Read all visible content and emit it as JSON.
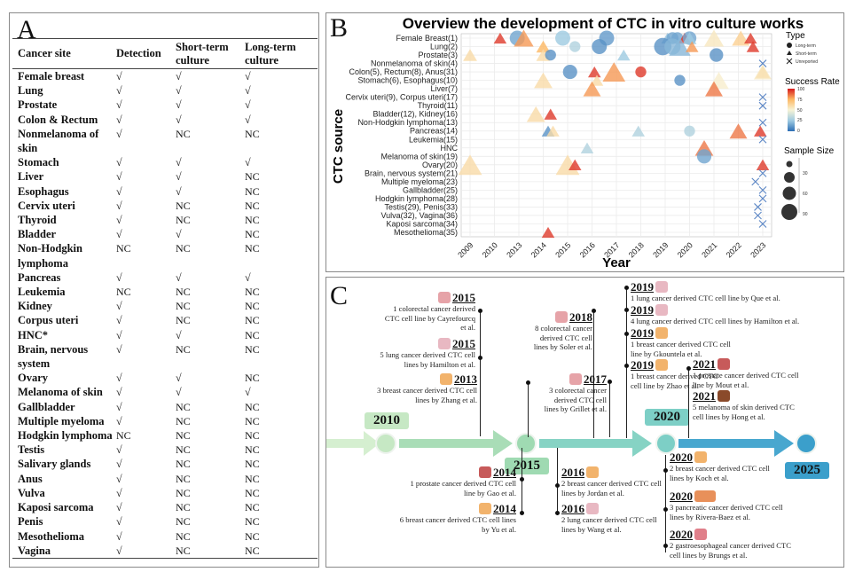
{
  "panelA": {
    "letter": "A",
    "headers": [
      "Cancer site",
      "Detection",
      "Short-term culture",
      "Long-term culture"
    ],
    "rows": [
      [
        "Female breast",
        "√",
        "√",
        "√"
      ],
      [
        "Lung",
        "√",
        "√",
        "√"
      ],
      [
        "Prostate",
        "√",
        "√",
        "√"
      ],
      [
        "Colon & Rectum",
        "√",
        "√",
        "√"
      ],
      [
        "Nonmelanoma of skin",
        "√",
        "NC",
        "NC"
      ],
      [
        "Stomach",
        "√",
        "√",
        "√"
      ],
      [
        "Liver",
        "√",
        "√",
        "NC"
      ],
      [
        "Esophagus",
        "√",
        "√",
        "NC"
      ],
      [
        "Cervix uteri",
        "√",
        "NC",
        "NC"
      ],
      [
        "Thyroid",
        "√",
        "NC",
        "NC"
      ],
      [
        "Bladder",
        "√",
        "√",
        "NC"
      ],
      [
        "Non-Hodgkin lymphoma",
        "NC",
        "NC",
        "NC"
      ],
      [
        "Pancreas",
        "√",
        "√",
        "√"
      ],
      [
        "Leukemia",
        "NC",
        "NC",
        "NC"
      ],
      [
        "Kidney",
        "√",
        "NC",
        "NC"
      ],
      [
        "Corpus uteri",
        "√",
        "NC",
        "NC"
      ],
      [
        "HNC*",
        "√",
        "√",
        "NC"
      ],
      [
        "Brain, nervous system",
        "√",
        "NC",
        "NC"
      ],
      [
        "Ovary",
        "√",
        "√",
        "NC"
      ],
      [
        "Melanoma of skin",
        "√",
        "√",
        "√"
      ],
      [
        "Gallbladder",
        "√",
        "NC",
        "NC"
      ],
      [
        "Multiple myeloma",
        "√",
        "NC",
        "NC"
      ],
      [
        "Hodgkin lymphoma",
        "NC",
        "NC",
        "NC"
      ],
      [
        "Testis",
        "√",
        "NC",
        "NC"
      ],
      [
        "Salivary glands",
        "√",
        "NC",
        "NC"
      ],
      [
        "Anus",
        "√",
        "NC",
        "NC"
      ],
      [
        "Vulva",
        "√",
        "NC",
        "NC"
      ],
      [
        "Kaposi sarcoma",
        "√",
        "NC",
        "NC"
      ],
      [
        "Penis",
        "√",
        "NC",
        "NC"
      ],
      [
        "Mesothelioma",
        "√",
        "NC",
        "NC"
      ],
      [
        "Vagina",
        "√",
        "NC",
        "NC"
      ]
    ]
  },
  "panelB": {
    "letter": "B"
  },
  "chart_data": {
    "type": "scatter",
    "title": "Overview the development of CTC in vitro culture works",
    "xlabel": "Year",
    "ylabel": "CTC source",
    "grid": true,
    "categories_x": [
      "2009",
      "2010",
      "2013",
      "2014",
      "2015",
      "2016",
      "2017",
      "2018",
      "2019",
      "2020",
      "2021",
      "2022",
      "2023"
    ],
    "categories_y": [
      "Female Breast(1)",
      "Lung(2)",
      "Prostate(3)",
      "Nonmelanoma of skin(4)",
      "Colon(5), Rectum(8), Anus(31)",
      "Stomach(6), Esophagus(10)",
      "Liver(7)",
      "Cervix uteri(9), Corpus uteri(17)",
      "Thyroid(11)",
      "Bladder(12), Kidney(16)",
      "Non-Hodgkin lymphoma(13)",
      "Pancreas(14)",
      "Leukemia(15)",
      "HNC",
      "Melanoma of skin(19)",
      "Ovary(20)",
      "Brain, nervous system(21)",
      "Multiple myeloma(23)",
      "Gallbladder(25)",
      "Hodgkin lymphoma(28)",
      "Testis(29), Penis(33)",
      "Vulva(32), Vagina(36)",
      "Kaposi sarcoma(34)",
      "Mesothelioma(35)"
    ],
    "legend": {
      "type_title": "Type",
      "types": [
        "Long-term",
        "Short-term",
        "Unreported"
      ],
      "color_title": "Success Rate",
      "color_ticks": [
        "100",
        "75",
        "50",
        "25",
        "0"
      ],
      "size_title": "Sample Size",
      "size_ticks": [
        "30",
        "60",
        "90"
      ],
      "placement": "right"
    },
    "points": [
      {
        "x": 2010.7,
        "y": "Female Breast(1)",
        "type": "Short-term",
        "rate": 95,
        "size": 15
      },
      {
        "x": 2012.8,
        "y": "Female Breast(1)",
        "type": "Long-term",
        "rate": 15,
        "size": 40
      },
      {
        "x": 2013.2,
        "y": "Female Breast(1)",
        "type": "Short-term",
        "rate": 80,
        "size": 55
      },
      {
        "x": 2014.8,
        "y": "Female Breast(1)",
        "type": "Long-term",
        "rate": 25,
        "size": 40
      },
      {
        "x": 2016.6,
        "y": "Female Breast(1)",
        "type": "Long-term",
        "rate": 12,
        "size": 40
      },
      {
        "x": 2019.1,
        "y": "Female Breast(1)",
        "type": "Short-term",
        "rate": 22,
        "size": 15
      },
      {
        "x": 2019.3,
        "y": "Female Breast(1)",
        "type": "Long-term",
        "rate": 15,
        "size": 20
      },
      {
        "x": 2019.5,
        "y": "Female Breast(1)",
        "type": "Long-term",
        "rate": 15,
        "size": 20
      },
      {
        "x": 2019.8,
        "y": "Female Breast(1)",
        "type": "Short-term",
        "rate": 95,
        "size": 15
      },
      {
        "x": 2020.0,
        "y": "Female Breast(1)",
        "type": "Long-term",
        "rate": 15,
        "size": 30
      },
      {
        "x": 2020.0,
        "y": "Female Breast(1)",
        "type": "Short-term",
        "rate": 25,
        "size": 20
      },
      {
        "x": 2021.0,
        "y": "Female Breast(1)",
        "type": "Short-term",
        "rate": 55,
        "size": 55
      },
      {
        "x": 2022.1,
        "y": "Female Breast(1)",
        "type": "Short-term",
        "rate": 65,
        "size": 40
      },
      {
        "x": 2022.5,
        "y": "Female Breast(1)",
        "type": "Short-term",
        "rate": 95,
        "size": 15
      },
      {
        "x": 2014.0,
        "y": "Lung(2)",
        "type": "Short-term",
        "rate": 75,
        "size": 20
      },
      {
        "x": 2015.3,
        "y": "Lung(2)",
        "type": "Long-term",
        "rate": 30,
        "size": 15
      },
      {
        "x": 2016.3,
        "y": "Lung(2)",
        "type": "Long-term",
        "rate": 10,
        "size": 40
      },
      {
        "x": 2018.9,
        "y": "Lung(2)",
        "type": "Long-term",
        "rate": 10,
        "size": 60
      },
      {
        "x": 2019.3,
        "y": "Lung(2)",
        "type": "Long-term",
        "rate": 20,
        "size": 50
      },
      {
        "x": 2019.6,
        "y": "Lung(2)",
        "type": "Short-term",
        "rate": 20,
        "size": 70
      },
      {
        "x": 2020.1,
        "y": "Lung(2)",
        "type": "Short-term",
        "rate": 80,
        "size": 15
      },
      {
        "x": 2022.6,
        "y": "Lung(2)",
        "type": "Short-term",
        "rate": 95,
        "size": 15
      },
      {
        "x": 2009.0,
        "y": "Prostate(3)",
        "type": "Short-term",
        "rate": 60,
        "size": 20
      },
      {
        "x": 2014.0,
        "y": "Prostate(3)",
        "type": "Short-term",
        "rate": 60,
        "size": 20
      },
      {
        "x": 2014.3,
        "y": "Prostate(3)",
        "type": "Long-term",
        "rate": 10,
        "size": 15
      },
      {
        "x": 2017.3,
        "y": "Prostate(3)",
        "type": "Short-term",
        "rate": 25,
        "size": 15
      },
      {
        "x": 2021.1,
        "y": "Prostate(3)",
        "type": "Long-term",
        "rate": 10,
        "size": 30
      },
      {
        "x": 2023.3,
        "y": "Nonmelanoma of skin(4)",
        "type": "Unreported",
        "rate": 10,
        "size": 15
      },
      {
        "x": 2015.1,
        "y": "Colon(5), Rectum(8), Anus(31)",
        "type": "Long-term",
        "rate": 10,
        "size": 35
      },
      {
        "x": 2016.1,
        "y": "Colon(5), Rectum(8), Anus(31)",
        "type": "Short-term",
        "rate": 95,
        "size": 15
      },
      {
        "x": 2016.9,
        "y": "Colon(5), Rectum(8), Anus(31)",
        "type": "Short-term",
        "rate": 80,
        "size": 80
      },
      {
        "x": 2018.0,
        "y": "Colon(5), Rectum(8), Anus(31)",
        "type": "Long-term",
        "rate": 95,
        "size": 15
      },
      {
        "x": 2023.0,
        "y": "Colon(5), Rectum(8), Anus(31)",
        "type": "Short-term",
        "rate": 70,
        "size": 20
      },
      {
        "x": 2023.2,
        "y": "Colon(5), Rectum(8), Anus(31)",
        "type": "Short-term",
        "rate": 55,
        "size": 40
      },
      {
        "x": 2014.0,
        "y": "Stomach(6), Esophagus(10)",
        "type": "Short-term",
        "rate": 60,
        "size": 45
      },
      {
        "x": 2016.2,
        "y": "Stomach(6), Esophagus(10)",
        "type": "Short-term",
        "rate": 60,
        "size": 15
      },
      {
        "x": 2019.6,
        "y": "Stomach(6), Esophagus(10)",
        "type": "Long-term",
        "rate": 10,
        "size": 15
      },
      {
        "x": 2021.2,
        "y": "Stomach(6), Esophagus(10)",
        "type": "Short-term",
        "rate": 52,
        "size": 55
      },
      {
        "x": 2016.0,
        "y": "Liver(7)",
        "type": "Short-term",
        "rate": 80,
        "size": 40
      },
      {
        "x": 2021.0,
        "y": "Liver(7)",
        "type": "Short-term",
        "rate": 85,
        "size": 40
      },
      {
        "x": 2023.3,
        "y": "Cervix uteri(9), Corpus uteri(17)",
        "type": "Unreported",
        "rate": 10,
        "size": 15
      },
      {
        "x": 2023.3,
        "y": "Thyroid(11)",
        "type": "Unreported",
        "rate": 10,
        "size": 15
      },
      {
        "x": 2013.7,
        "y": "Bladder(12), Kidney(16)",
        "type": "Short-term",
        "rate": 60,
        "size": 45
      },
      {
        "x": 2014.3,
        "y": "Bladder(12), Kidney(16)",
        "type": "Short-term",
        "rate": 95,
        "size": 15
      },
      {
        "x": 2023.1,
        "y": "Non-Hodgkin lymphoma(13)",
        "type": "Unreported",
        "rate": 10,
        "size": 15
      },
      {
        "x": 2014.2,
        "y": "Pancreas(14)",
        "type": "Short-term",
        "rate": 10,
        "size": 15
      },
      {
        "x": 2014.4,
        "y": "Pancreas(14)",
        "type": "Short-term",
        "rate": 60,
        "size": 15
      },
      {
        "x": 2017.9,
        "y": "Pancreas(14)",
        "type": "Short-term",
        "rate": 30,
        "size": 15
      },
      {
        "x": 2020.0,
        "y": "Pancreas(14)",
        "type": "Long-term",
        "rate": 30,
        "size": 15
      },
      {
        "x": 2022.0,
        "y": "Pancreas(14)",
        "type": "Short-term",
        "rate": 85,
        "size": 40
      },
      {
        "x": 2022.9,
        "y": "Pancreas(14)",
        "type": "Short-term",
        "rate": 95,
        "size": 15
      },
      {
        "x": 2023.2,
        "y": "Leukemia(15)",
        "type": "Unreported",
        "rate": 10,
        "size": 15
      },
      {
        "x": 2015.8,
        "y": "HNC",
        "type": "Short-term",
        "rate": 30,
        "size": 15
      },
      {
        "x": 2020.6,
        "y": "HNC",
        "type": "Short-term",
        "rate": 85,
        "size": 45
      },
      {
        "x": 2020.6,
        "y": "Melanoma of skin(19)",
        "type": "Long-term",
        "rate": 15,
        "size": 35
      },
      {
        "x": 2009.0,
        "y": "Ovary(20)",
        "type": "Short-term",
        "rate": 60,
        "size": 90
      },
      {
        "x": 2015.0,
        "y": "Ovary(20)",
        "type": "Short-term",
        "rate": 60,
        "size": 90
      },
      {
        "x": 2015.3,
        "y": "Ovary(20)",
        "type": "Short-term",
        "rate": 95,
        "size": 15
      },
      {
        "x": 2023.0,
        "y": "Ovary(20)",
        "type": "Short-term",
        "rate": 95,
        "size": 15
      },
      {
        "x": 2023.3,
        "y": "Brain, nervous system(21)",
        "type": "Unreported",
        "rate": 10,
        "size": 15
      },
      {
        "x": 2022.7,
        "y": "Multiple myeloma(23)",
        "type": "Unreported",
        "rate": 10,
        "size": 15
      },
      {
        "x": 2023.2,
        "y": "Gallbladder(25)",
        "type": "Unreported",
        "rate": 10,
        "size": 15
      },
      {
        "x": 2023.1,
        "y": "Hodgkin lymphoma(28)",
        "type": "Unreported",
        "rate": 10,
        "size": 15
      },
      {
        "x": 2022.8,
        "y": "Testis(29), Penis(33)",
        "type": "Unreported",
        "rate": 10,
        "size": 15
      },
      {
        "x": 2022.8,
        "y": "Vulva(32), Vagina(36)",
        "type": "Unreported",
        "rate": 10,
        "size": 15
      },
      {
        "x": 2023.4,
        "y": "Kaposi sarcoma(34)",
        "type": "Unreported",
        "rate": 10,
        "size": 15
      },
      {
        "x": 2014.2,
        "y": "Mesothelioma(35)",
        "type": "Short-term",
        "rate": 95,
        "size": 15
      }
    ]
  },
  "panelC": {
    "letter": "C",
    "milestones": [
      {
        "year": "2010",
        "color": "#c6e8c4"
      },
      {
        "year": "2015",
        "color": "#9fdab2"
      },
      {
        "year": "2020",
        "color": "#7dcfc6"
      },
      {
        "year": "2025",
        "color": "#3b9fcb"
      }
    ],
    "entries": [
      {
        "year": "2015",
        "icon": "colon-icon",
        "text": "1 colorectal cancer derived CTC cell line by Cayrefourcq et al."
      },
      {
        "year": "2015",
        "icon": "lung-icon",
        "text": "5 lung cancer derived CTC cell lines by Hamilton et al."
      },
      {
        "year": "2013",
        "icon": "breast-icon",
        "text": "3 breast cancer derived CTC cell lines by Zhang et al."
      },
      {
        "year": "2018",
        "icon": "colon-icon",
        "text": "8 colorectal cancer derived CTC cell lines by Soler et al."
      },
      {
        "year": "2017",
        "icon": "colon-icon",
        "text": "3 colorectal cancer derived CTC cell lines by Grillet et al."
      },
      {
        "year": "2019",
        "icon": "lung-icon",
        "text": "1 lung cancer derived CTC cell line by Que et al."
      },
      {
        "year": "2019",
        "icon": "lung-icon",
        "text": "4 lung cancer derived CTC cell lines by Hamilton et al."
      },
      {
        "year": "2019",
        "icon": "breast-icon",
        "text": "1 breast cancer derived CTC cell line by Gkountela et al."
      },
      {
        "year": "2019",
        "icon": "breast-icon",
        "text": "1 breast cancer derived CTC cell line by Zhao et al."
      },
      {
        "year": "2021",
        "icon": "prostate-icon",
        "text": "1 prostate cancer derived CTC cell line by Mout et al."
      },
      {
        "year": "2021",
        "icon": "melanoma-icon",
        "text": "5 melanoma of skin derived CTC cell lines by Hong et al."
      },
      {
        "year": "2014",
        "icon": "prostate-icon",
        "text": "1 prostate cancer derived CTC cell line by Gao et al."
      },
      {
        "year": "2014",
        "icon": "breast-icon",
        "text": "6 breast cancer derived CTC cell lines by Yu et al."
      },
      {
        "year": "2016",
        "icon": "breast-icon",
        "text": "2 breast cancer derived CTC cell lines by Jordan et al."
      },
      {
        "year": "2016",
        "icon": "lung-icon",
        "text": "2 lung cancer derived CTC cell lines by Wang et al."
      },
      {
        "year": "2020",
        "icon": "breast-icon",
        "text": "2 breast cancer derived CTC cell lines by Koch et al."
      },
      {
        "year": "2020",
        "icon": "pancreas-icon",
        "text": "3 pancreatic cancer derived CTC cell lines by Rivera-Baez et al."
      },
      {
        "year": "2020",
        "icon": "stomach-icon",
        "text": "2 gastroesophageal cancer derived CTC cell lines by Brungs et al."
      }
    ]
  }
}
